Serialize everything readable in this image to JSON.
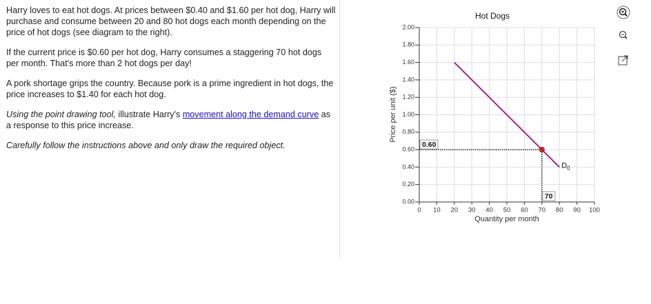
{
  "text_panel": {
    "paragraphs": [
      [
        "Harry loves to eat hot dogs. At prices between $0.40 and $1.60 per hot dog, Harry will purchase and consume between 20 and 80 hot dogs each month depending on the price of hot dogs (see diagram to the right)."
      ],
      [
        "If the current price is $0.60 per hot dog, Harry consumes a staggering 70 hot dogs per month. That's more than 2 hot dogs per day!"
      ],
      [
        "A pork shortage grips the country. Because pork is a prime ingredient in hot dogs, the price increases to $1.40 for each hot dog."
      ],
      [
        "Using the point drawing tool,",
        " illustrate Harry's ",
        "movement along the demand curve",
        " as a response to this price increase."
      ],
      [
        "Carefully follow the instructions above and only draw the required object."
      ]
    ]
  },
  "chart_data": {
    "type": "line",
    "title": "Hot Dogs",
    "x_label": "Quantity per month",
    "y_label": "Price per unit ($)",
    "series": [
      {
        "name": "D",
        "name_subscript": "0",
        "color": "#a0228c",
        "x": [
          20,
          80
        ],
        "values": [
          1.6,
          0.4
        ]
      }
    ],
    "point": {
      "x": 70,
      "y": 0.6,
      "y_label": "0.60",
      "color": "#e0231b"
    },
    "xlim": [
      0,
      100
    ],
    "xticks": [
      0,
      10,
      20,
      30,
      40,
      50,
      60,
      70,
      80,
      90,
      100
    ],
    "ylim": [
      0,
      2
    ],
    "yticks": [
      {
        "value": 0,
        "label": "0.00"
      },
      {
        "value": 0.2,
        "label": "0.20"
      },
      {
        "value": 0.4,
        "label": "0.40"
      },
      {
        "value": 0.6,
        "label": "0.60"
      },
      {
        "value": 0.8,
        "label": "0.80"
      },
      {
        "value": 1,
        "label": "1.00"
      },
      {
        "value": 1.2,
        "label": "1.20"
      },
      {
        "value": 1.4,
        "label": "1.40"
      },
      {
        "value": 1.6,
        "label": "1.60"
      },
      {
        "value": 1.8,
        "label": "1.80"
      },
      {
        "value": 2,
        "label": "2.00"
      }
    ],
    "grid": true
  }
}
